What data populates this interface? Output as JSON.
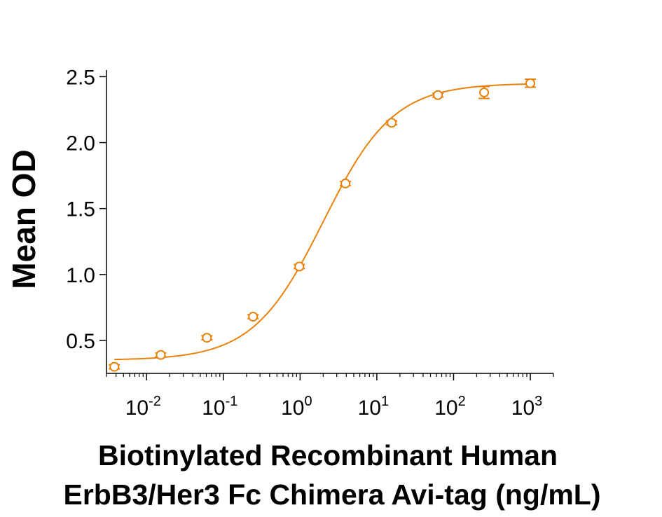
{
  "chart_data": {
    "type": "scatter",
    "title": "",
    "xlabel_line1": "Biotinylated Recombinant Human",
    "xlabel_line2": "ErbB3/Her3 Fc Chimera Avi-tag (ng/mL)",
    "ylabel": "Mean OD",
    "x_scale": "log",
    "xlim": [
      0.003,
      2000
    ],
    "ylim": [
      0.25,
      2.55
    ],
    "x_ticks": [
      {
        "value": 0.01,
        "base": "10",
        "exp": "-2"
      },
      {
        "value": 0.1,
        "base": "10",
        "exp": "-1"
      },
      {
        "value": 1,
        "base": "10",
        "exp": "0"
      },
      {
        "value": 10,
        "base": "10",
        "exp": "1"
      },
      {
        "value": 100,
        "base": "10",
        "exp": "2"
      },
      {
        "value": 1000,
        "base": "10",
        "exp": "3"
      }
    ],
    "y_ticks": [
      {
        "value": 0.5,
        "label": "0.5"
      },
      {
        "value": 1.0,
        "label": "1.0"
      },
      {
        "value": 1.5,
        "label": "1.5"
      },
      {
        "value": 2.0,
        "label": "2.0"
      },
      {
        "value": 2.5,
        "label": "2.5"
      }
    ],
    "grid": false,
    "color": "#E8820C",
    "points": [
      {
        "x": 0.0038,
        "y": 0.3,
        "err": 0.015
      },
      {
        "x": 0.0153,
        "y": 0.39,
        "err": 0.015
      },
      {
        "x": 0.061,
        "y": 0.52,
        "err": 0.015
      },
      {
        "x": 0.244,
        "y": 0.68,
        "err": 0.015
      },
      {
        "x": 0.977,
        "y": 1.06,
        "err": 0.015
      },
      {
        "x": 3.9,
        "y": 1.69,
        "err": 0.015
      },
      {
        "x": 15.6,
        "y": 2.15,
        "err": 0.015
      },
      {
        "x": 62.5,
        "y": 2.36,
        "err": 0.015
      },
      {
        "x": 250,
        "y": 2.38,
        "err": 0.045
      },
      {
        "x": 1000,
        "y": 2.45,
        "err": 0.03
      }
    ],
    "fit": {
      "model": "4PL",
      "bottom": 0.35,
      "top": 2.45,
      "ec50": 2.0,
      "hill": 0.95
    }
  }
}
